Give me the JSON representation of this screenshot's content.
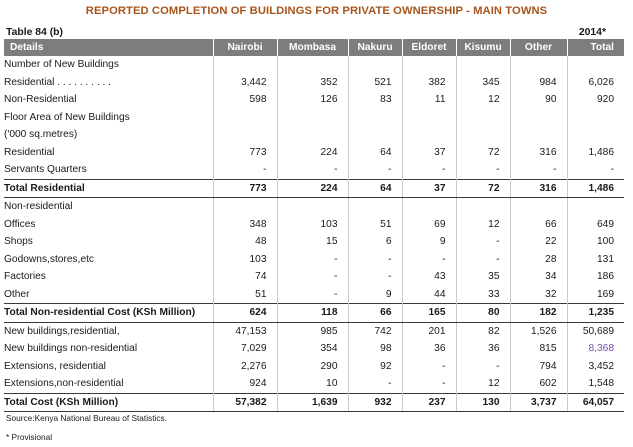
{
  "title": "REPORTED COMPLETION OF BUILDINGS FOR PRIVATE OWNERSHIP - MAIN TOWNS",
  "table_label": "Table 84 (b)",
  "year_label": "2014*",
  "accent_colors": {
    "title": "#a8551c",
    "header_bg": "#7d7d7d",
    "highlight": "#7b4fb2"
  },
  "columns": [
    "Details",
    "Nairobi",
    "Mombasa",
    "Nakuru",
    "Eldoret",
    "Kisumu",
    "Other",
    "Total"
  ],
  "rows": [
    {
      "label": "Number of New Buildings",
      "indent": 1,
      "values": [
        "",
        "",
        "",
        "",
        "",
        "",
        ""
      ]
    },
    {
      "label": "Residential . . . . . . . . . .",
      "indent": 2,
      "values": [
        "3,442",
        "352",
        "521",
        "382",
        "345",
        "984",
        "6,026"
      ]
    },
    {
      "label": "Non-Residential",
      "indent": 2,
      "values": [
        "598",
        "126",
        "83",
        "11",
        "12",
        "90",
        "920"
      ]
    },
    {
      "label": "Floor Area of New Buildings",
      "indent": 1,
      "values": [
        "",
        "",
        "",
        "",
        "",
        "",
        ""
      ]
    },
    {
      "label": "('000 sq.metres)",
      "indent": 2,
      "values": [
        "",
        "",
        "",
        "",
        "",
        "",
        ""
      ]
    },
    {
      "label": "Residential",
      "indent": 2,
      "values": [
        "773",
        "224",
        "64",
        "37",
        "72",
        "316",
        "1,486"
      ]
    },
    {
      "label": "Servants Quarters",
      "indent": 2,
      "values": [
        "-",
        "-",
        "-",
        "-",
        "-",
        "-",
        "-"
      ]
    },
    {
      "label": "Total Residential",
      "indent": 3,
      "bold": true,
      "values": [
        "773",
        "224",
        "64",
        "37",
        "72",
        "316",
        "1,486"
      ]
    },
    {
      "label": "Non-residential",
      "indent": 0,
      "values": [
        "",
        "",
        "",
        "",
        "",
        "",
        ""
      ]
    },
    {
      "label": "Offices",
      "indent": 0,
      "values": [
        "348",
        "103",
        "51",
        "69",
        "12",
        "66",
        "649"
      ]
    },
    {
      "label": "Shops",
      "indent": 0,
      "values": [
        "48",
        "15",
        "6",
        "9",
        "-",
        "22",
        "100"
      ]
    },
    {
      "label": "Godowns,stores,etc",
      "indent": 0,
      "values": [
        "103",
        "-",
        "-",
        "-",
        "-",
        "28",
        "131"
      ]
    },
    {
      "label": "Factories",
      "indent": 0,
      "values": [
        "74",
        "-",
        "-",
        "43",
        "35",
        "34",
        "186"
      ]
    },
    {
      "label": "Other",
      "indent": 0,
      "values": [
        "51",
        "-",
        "9",
        "44",
        "33",
        "32",
        "169"
      ]
    },
    {
      "label": "Total Non-residential Cost (KSh Million)",
      "indent": 0,
      "bold": true,
      "values": [
        "624",
        "118",
        "66",
        "165",
        "80",
        "182",
        "1,235"
      ]
    },
    {
      "label": "New buildings,residential,",
      "indent": 0,
      "values": [
        "47,153",
        "985",
        "742",
        "201",
        "82",
        "1,526",
        "50,689"
      ]
    },
    {
      "label": "New buildings non-residential",
      "indent": 0,
      "values": [
        "7,029",
        "354",
        "98",
        "36",
        "36",
        "815",
        "8,368"
      ],
      "highlight_last": true
    },
    {
      "label": "Extensions, residential",
      "indent": 0,
      "values": [
        "2,276",
        "290",
        "92",
        "-",
        "-",
        "794",
        "3,452"
      ]
    },
    {
      "label": "Extensions,non-residential",
      "indent": 0,
      "values": [
        "924",
        "10",
        "-",
        "-",
        "12",
        "602",
        "1,548"
      ]
    },
    {
      "label": "Total Cost (KSh Million)",
      "indent": 3,
      "bold": true,
      "values": [
        "57,382",
        "1,639",
        "932",
        "237",
        "130",
        "3,737",
        "64,057"
      ]
    }
  ],
  "source": "Source:Kenya National Bureau of Statistics.",
  "provisional_note": "* Provisional"
}
